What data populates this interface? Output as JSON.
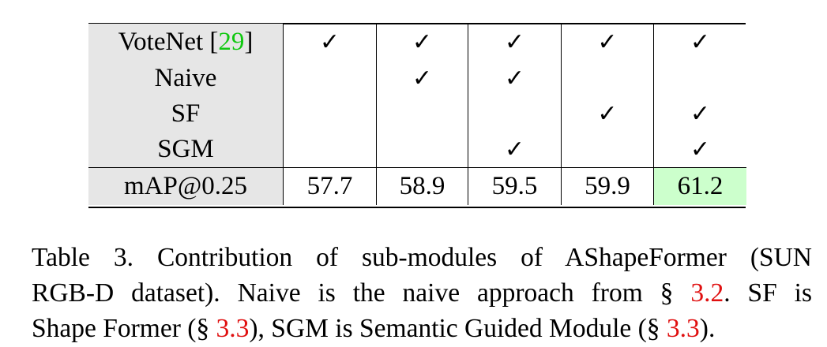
{
  "table": {
    "rows": [
      {
        "label": "VoteNet [",
        "ref": "29",
        "label_suffix": "]",
        "cells": [
          "✓",
          "✓",
          "✓",
          "✓",
          "✓"
        ]
      },
      {
        "label": "Naive",
        "cells": [
          "",
          "✓",
          "✓",
          "",
          ""
        ]
      },
      {
        "label": "SF",
        "cells": [
          "",
          "",
          "",
          "✓",
          "✓"
        ]
      },
      {
        "label": "SGM",
        "cells": [
          "",
          "",
          "✓",
          "",
          "✓"
        ]
      }
    ],
    "metric": {
      "label": "mAP@0.25",
      "values": [
        "57.7",
        "58.9",
        "59.5",
        "59.9",
        "61.2"
      ]
    },
    "best_color": "#ccffcc",
    "header_bg": "#e6e6e6",
    "ref_color_green": "#10c810",
    "ref_color_red": "#e01010"
  },
  "caption": {
    "l1": "Table 3.  Contribution of sub-modules of AShapeFormer (SUN",
    "l2a": "RGB-D dataset).  Naive is the naive approach from §",
    "l2ref": "3.2",
    "l2b": ".  SF is",
    "l3a": "Shape Former (§",
    "l3ref1": "3.3",
    "l3b": "), SGM is Semantic Guided Module (§",
    "l3ref2": "3.3",
    "l3c": ")."
  }
}
